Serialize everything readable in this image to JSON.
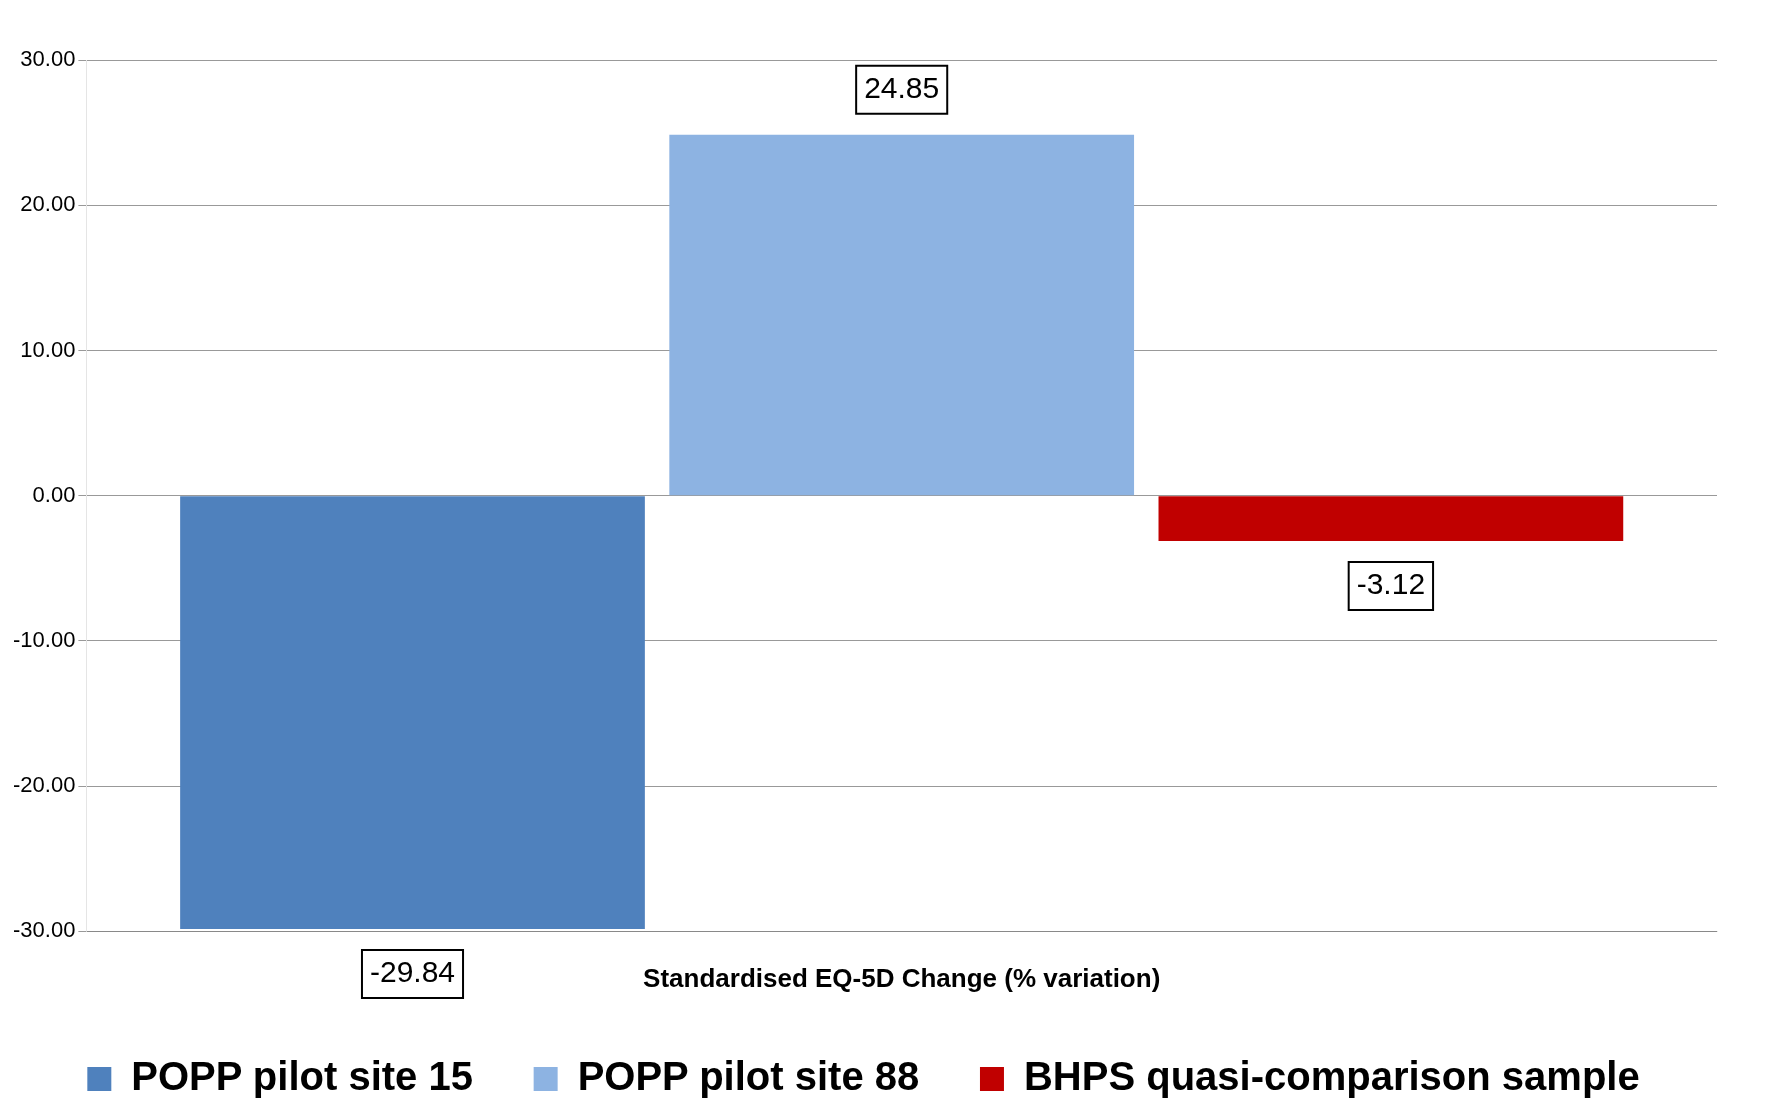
{
  "chart_data": {
    "type": "bar",
    "xlabel": "Standardised EQ-5D Change (% variation)",
    "categories": [
      null
    ],
    "series": [
      {
        "name": "POPP pilot site 15",
        "color": "#4f81bd",
        "values": [
          -29.84
        ]
      },
      {
        "name": "POPP pilot site 88",
        "color": "#8db3e2",
        "values": [
          24.85
        ]
      },
      {
        "name": "BHPS quasi-comparison sample",
        "color": "#c00000",
        "values": [
          -3.12
        ]
      }
    ],
    "ylim": [
      -30,
      30
    ],
    "yticks": [
      {
        "value": -30,
        "label": "-30.00"
      },
      {
        "value": -20,
        "label": "-20.00"
      },
      {
        "value": -10,
        "label": "-10.00"
      },
      {
        "value": 0,
        "label": "0.00"
      },
      {
        "value": 10,
        "label": "10.00"
      },
      {
        "value": 20,
        "label": "20.00"
      },
      {
        "value": 30,
        "label": "30.00"
      }
    ],
    "grid": "y",
    "legend": "bottom",
    "data_labels": true
  }
}
